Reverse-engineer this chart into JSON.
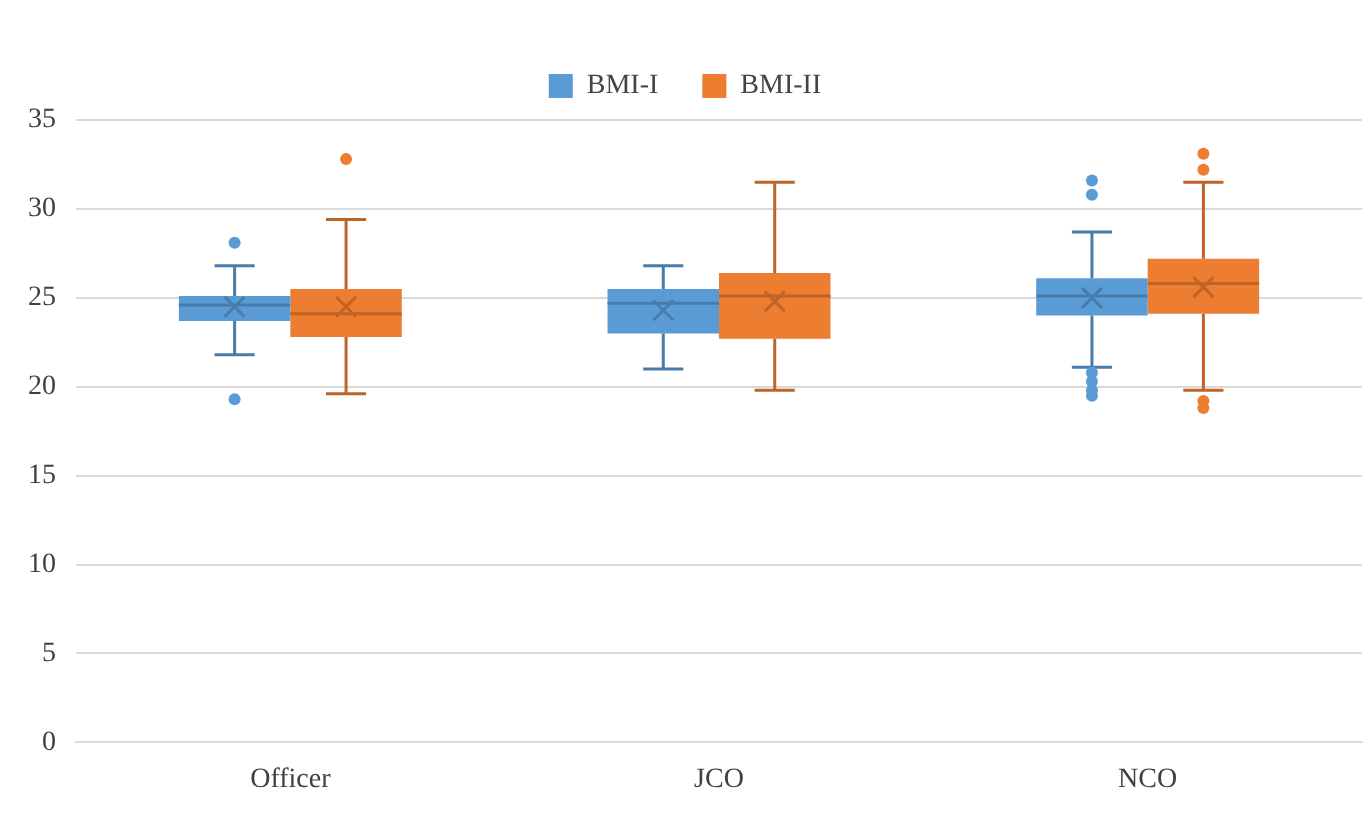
{
  "chart_data": {
    "type": "box",
    "categories": [
      "Officer",
      "JCO",
      "NCO"
    ],
    "series": [
      {
        "name": "BMI-I",
        "color": "#5b9bd5",
        "boxes": [
          {
            "low": 21.8,
            "q1": 23.7,
            "median": 24.6,
            "q3": 25.1,
            "high": 26.8,
            "mean": 24.5,
            "outliers": [
              28.1,
              19.3
            ]
          },
          {
            "low": 21.0,
            "q1": 23.0,
            "median": 24.7,
            "q3": 25.5,
            "high": 26.8,
            "mean": 24.3
          },
          {
            "low": 21.1,
            "q1": 24.0,
            "median": 25.1,
            "q3": 26.1,
            "high": 28.7,
            "mean": 25.0,
            "outliers": [
              31.6,
              30.8,
              20.8,
              20.3,
              19.8,
              19.5
            ]
          }
        ]
      },
      {
        "name": "BMI-II",
        "color": "#ed7d31",
        "boxes": [
          {
            "low": 19.6,
            "q1": 22.8,
            "median": 24.1,
            "q3": 25.5,
            "high": 29.4,
            "mean": 24.5,
            "outliers": [
              32.8
            ]
          },
          {
            "low": 19.8,
            "q1": 22.7,
            "median": 25.1,
            "q3": 26.4,
            "high": 31.5,
            "mean": 24.8
          },
          {
            "low": 19.8,
            "q1": 24.1,
            "median": 25.8,
            "q3": 27.2,
            "high": 31.5,
            "mean": 25.6,
            "outliers": [
              33.1,
              32.2,
              19.2,
              18.8
            ]
          }
        ]
      }
    ],
    "ylim": [
      0,
      35
    ],
    "yticks": [
      0,
      5,
      10,
      15,
      20,
      25,
      30,
      35
    ],
    "grid": "y",
    "legend": "top",
    "marker": "circle"
  }
}
